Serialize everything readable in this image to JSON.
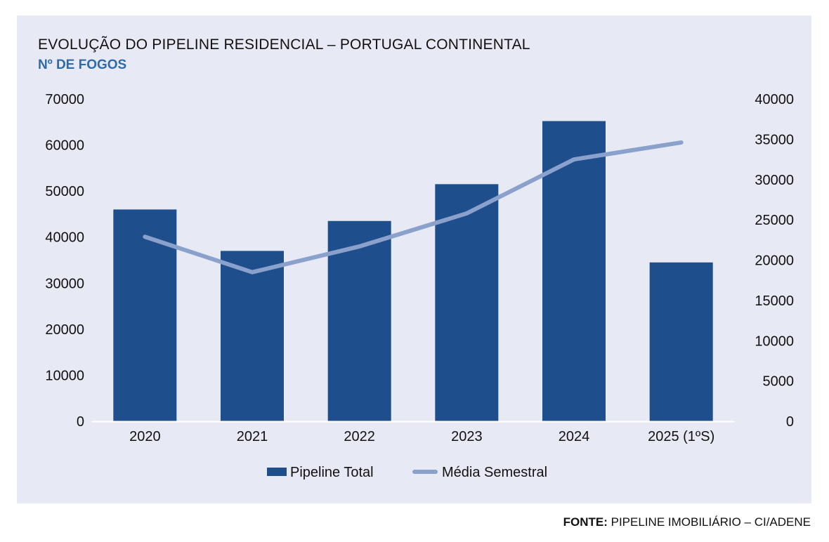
{
  "chart_data": {
    "type": "bar+line",
    "title": "EVOLUÇÃO DO PIPELINE RESIDENCIAL – PORTUGAL CONTINENTAL",
    "subtitle": "Nº DE FOGOS",
    "categories": [
      "2020",
      "2021",
      "2022",
      "2023",
      "2024",
      "2025 (1ºS)"
    ],
    "series": [
      {
        "name": "Pipeline Total",
        "type": "bar",
        "axis": "left",
        "color": "#1f4e8c",
        "values": [
          46000,
          37000,
          43500,
          51500,
          65200,
          34500
        ]
      },
      {
        "name": "Média Semestral",
        "type": "line",
        "axis": "right",
        "color": "#8aa1cc",
        "values": [
          22900,
          18500,
          21700,
          25800,
          32500,
          34600
        ]
      }
    ],
    "y_left": {
      "min": 0,
      "max": 70000,
      "ticks": [
        "0",
        "10000",
        "20000",
        "30000",
        "40000",
        "50000",
        "60000",
        "70000"
      ]
    },
    "y_right": {
      "min": 0,
      "max": 40000,
      "ticks": [
        "0",
        "5000",
        "10000",
        "15000",
        "20000",
        "25000",
        "30000",
        "35000",
        "40000"
      ]
    },
    "grid": false,
    "legend": "bottom-center"
  },
  "source": {
    "label": "FONTE:",
    "text": "PIPELINE IMOBILIÁRIO – CI/ADENE"
  }
}
